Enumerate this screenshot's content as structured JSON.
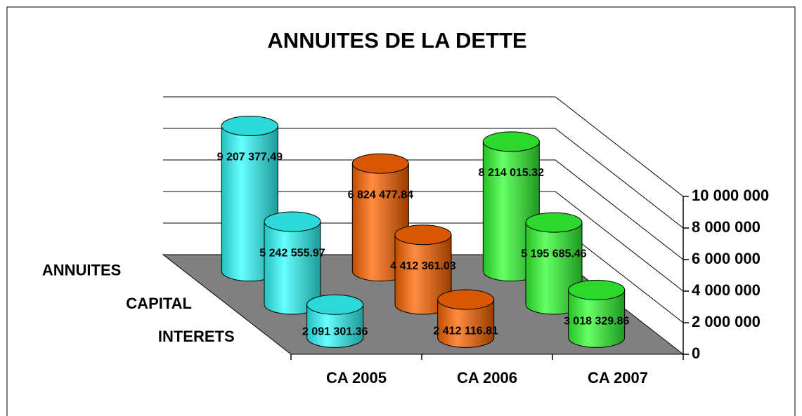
{
  "chart_data": {
    "type": "bar3d-cylinder",
    "title": "ANNUITES DE LA DETTE",
    "categories": [
      "CA 2005",
      "CA 2006",
      "CA 2007"
    ],
    "colors": [
      "#33ffff",
      "#ff6600",
      "#33ff33"
    ],
    "series": [
      {
        "name": "ANNUITES",
        "values": [
          9207377.49,
          6824477.84,
          8214015.32
        ],
        "value_labels": [
          "9 207 377,49",
          "6 824 477.84",
          "8 214 015.32"
        ]
      },
      {
        "name": "CAPITAL",
        "values": [
          5242555.97,
          4412361.03,
          5195685.46
        ],
        "value_labels": [
          "5 242 555.97",
          "4 412 361.03",
          "5 195 685.46"
        ]
      },
      {
        "name": "INTERETS",
        "values": [
          2091301.36,
          2412116.81,
          3018329.86
        ],
        "value_labels": [
          "2 091 301.36",
          "2 412 116.81",
          "3 018 329.86"
        ]
      }
    ],
    "ylim": [
      0,
      10000000
    ],
    "yticks": [
      0,
      {
        "value": 2000000,
        "label": "2 000 000"
      },
      {
        "value": 4000000,
        "label": "4 000 000"
      },
      {
        "value": 6000000,
        "label": "6 000 000"
      },
      {
        "value": 8000000,
        "label": "8 000 000"
      },
      {
        "value": 10000000,
        "label": "10 000 000"
      }
    ],
    "grid": true
  }
}
